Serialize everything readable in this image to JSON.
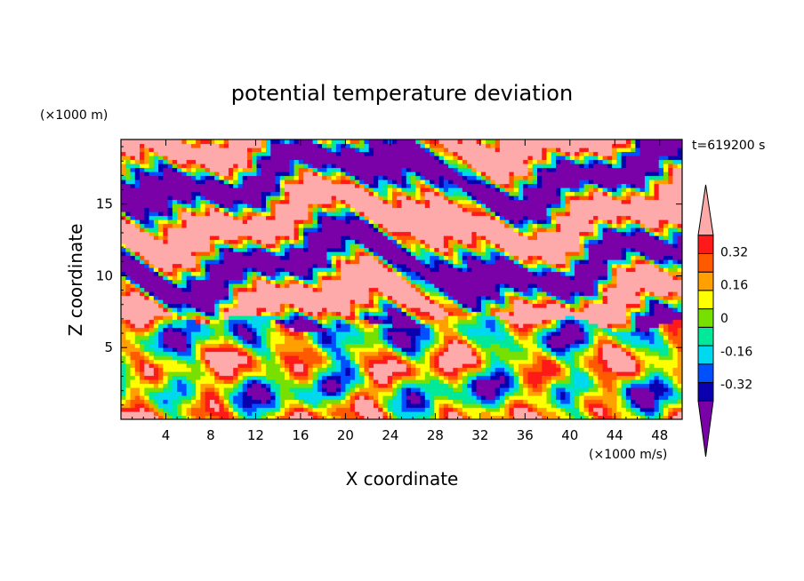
{
  "chart_data": {
    "type": "heatmap",
    "title": "potential temperature deviation",
    "xlabel": "X coordinate",
    "ylabel": "Z coordinate",
    "x_unit": "(×1000 m/s)",
    "y_unit": "(×1000 m)",
    "time_label": "t=619200 s",
    "xlim": [
      0,
      50
    ],
    "ylim": [
      0,
      19.5
    ],
    "x_ticks": [
      4,
      8,
      12,
      16,
      20,
      24,
      28,
      32,
      36,
      40,
      44,
      48
    ],
    "y_ticks": [
      5,
      10,
      15
    ],
    "colorbar": {
      "levels": [
        -0.4,
        -0.32,
        -0.24,
        -0.16,
        -0.08,
        0,
        0.08,
        0.16,
        0.24,
        0.32,
        0.4
      ],
      "tick_labels": [
        "-0.32",
        "-0.16",
        "0",
        "0.16",
        "0.32"
      ],
      "tick_values": [
        -0.32,
        -0.16,
        0,
        0.16,
        0.32
      ],
      "colors": [
        "#7a00a8",
        "#0a00b0",
        "#0050ff",
        "#00d8f0",
        "#00e89a",
        "#78e000",
        "#ffff00",
        "#ffa000",
        "#ff5a00",
        "#ff1a1a",
        "#ffaaaa"
      ],
      "extend": "both"
    },
    "field_description": "Alternating positive (pink) and negative (purple) layers above z≈7, mixed turbulent structure below",
    "grid": false
  }
}
